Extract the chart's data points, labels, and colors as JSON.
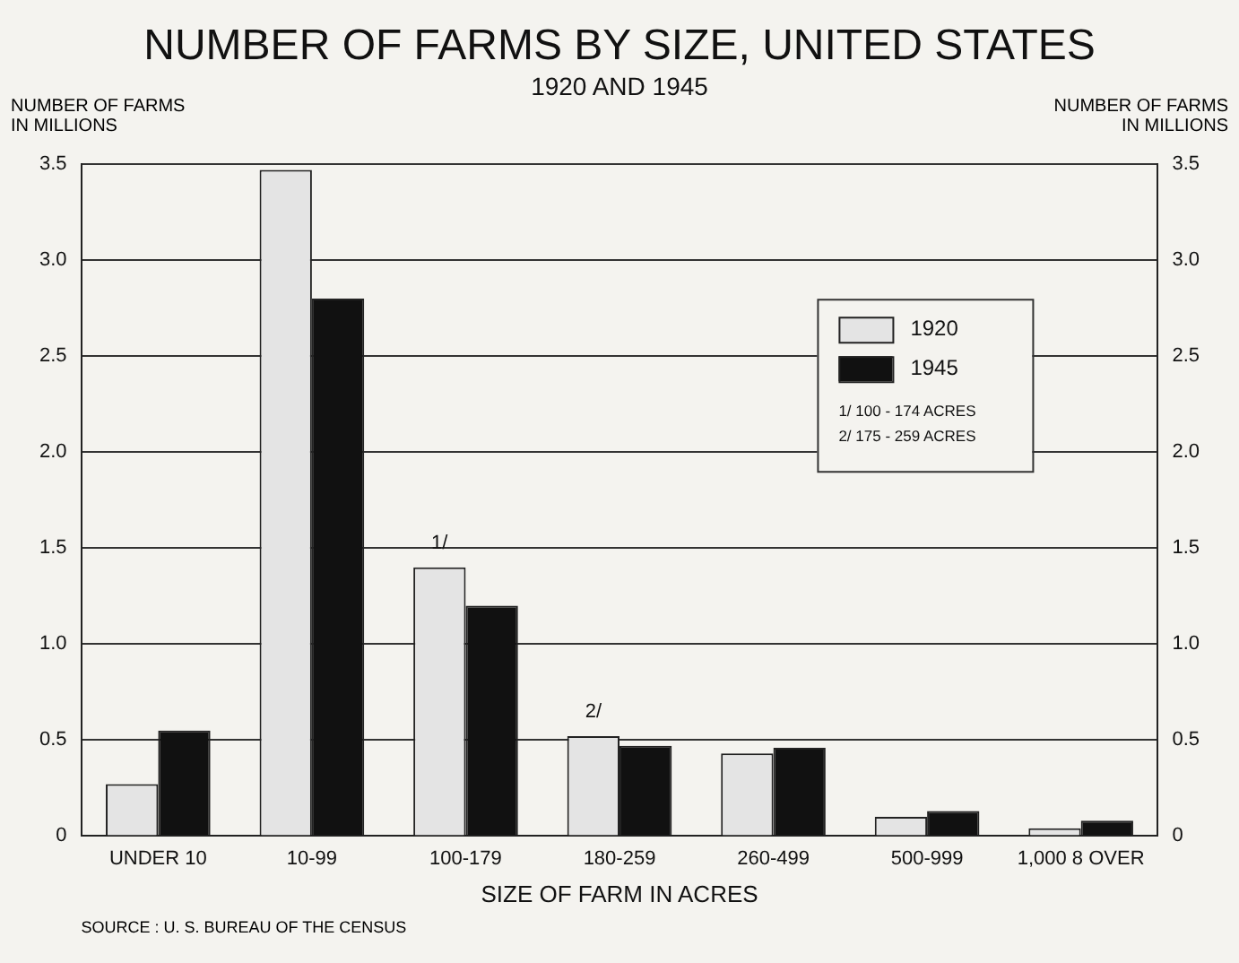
{
  "chart_data": {
    "type": "bar",
    "title": "NUMBER OF FARMS BY SIZE, UNITED STATES",
    "subtitle": "1920 AND 1945",
    "xlabel": "SIZE OF FARM IN ACRES",
    "ylabel": "NUMBER OF FARMS IN MILLIONS",
    "y2label": "NUMBER OF FARMS IN MILLIONS",
    "categories": [
      "UNDER 10",
      "10-99",
      "100-179",
      "180-259",
      "260-499",
      "500-999",
      "1,000 8 OVER"
    ],
    "series": [
      {
        "name": "1920",
        "color": "#e4e4e4",
        "values": [
          0.27,
          3.47,
          1.4,
          0.52,
          0.43,
          0.1,
          0.04
        ]
      },
      {
        "name": "1945",
        "color": "#111111",
        "values": [
          0.55,
          2.8,
          1.2,
          0.47,
          0.46,
          0.13,
          0.08
        ]
      }
    ],
    "ylim": [
      0,
      3.5
    ],
    "yticks": [
      0,
      0.5,
      {
        "value": 1,
        "label": "1.0"
      },
      1.5,
      {
        "value": 2,
        "label": "2.0"
      },
      2.5,
      {
        "value": 3,
        "label": "3.0"
      },
      3.5
    ],
    "y2lim": [
      0,
      3.5
    ],
    "y2ticks": [
      0,
      0.5,
      {
        "value": 1,
        "label": "1.0"
      },
      1.5,
      {
        "value": 2,
        "label": "2.0"
      },
      2.5,
      {
        "value": 3,
        "label": "3.0"
      },
      3.5
    ],
    "grid": "y",
    "legend": "top right",
    "annotations": [
      {
        "text": "1/",
        "x": "100-179",
        "y": 1.4
      },
      {
        "text": "2/",
        "x": "180-259",
        "y": 0.52
      },
      "1/ 100 - 174 ACRES",
      "2/ 175 - 259 ACRES",
      "SOURCE : U. S. BUREAU OF THE CENSUS"
    ]
  }
}
